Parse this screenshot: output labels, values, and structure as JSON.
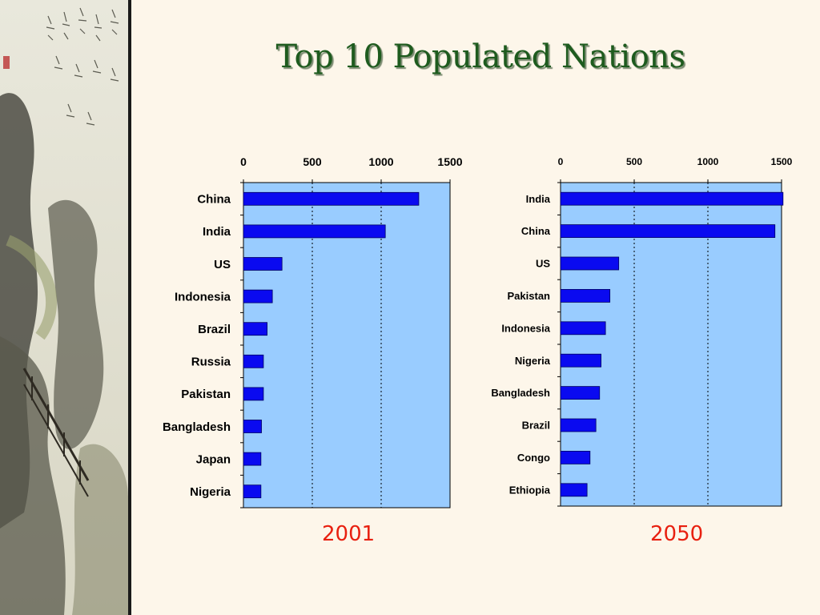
{
  "title": "Top 10 Populated Nations",
  "colors": {
    "bar": "#0a0af0",
    "plot_bg": "#99ccff",
    "title": "#1e5b1e",
    "year": "#e82010"
  },
  "chart_data": [
    {
      "type": "bar",
      "orientation": "horizontal",
      "title": "2001",
      "xlim": [
        0,
        1500
      ],
      "xticks": [
        0,
        500,
        1000,
        1500
      ],
      "axis_position": "top",
      "grid": "vertical dotted",
      "categories": [
        "China",
        "India",
        "US",
        "Indonesia",
        "Brazil",
        "Russia",
        "Pakistan",
        "Bangladesh",
        "Japan",
        "Nigeria"
      ],
      "values": [
        1273,
        1030,
        280,
        210,
        172,
        145,
        145,
        131,
        127,
        127
      ]
    },
    {
      "type": "bar",
      "orientation": "horizontal",
      "title": "2050",
      "xlim": [
        0,
        1500
      ],
      "xticks": [
        0,
        500,
        1000,
        1500
      ],
      "axis_position": "top",
      "grid": "vertical dotted",
      "categories": [
        "India",
        "China",
        "US",
        "Pakistan",
        "Indonesia",
        "Nigeria",
        "Bangladesh",
        "Brazil",
        "Congo",
        "Ethiopia"
      ],
      "values": [
        1510,
        1455,
        395,
        335,
        305,
        275,
        265,
        240,
        200,
        180
      ]
    }
  ]
}
